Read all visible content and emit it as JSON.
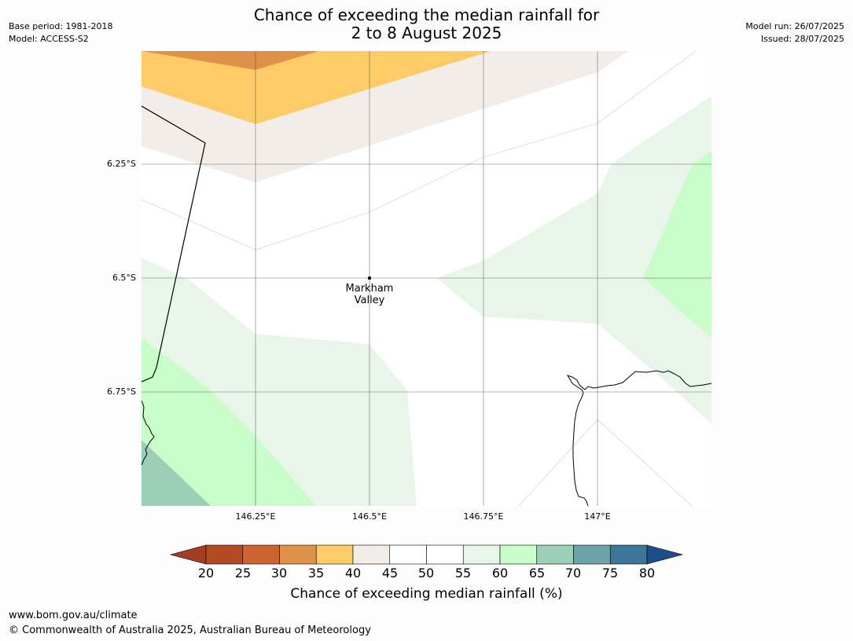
{
  "header": {
    "title_line1": "Chance of exceeding the median rainfall for",
    "title_line2": "2 to 8 August 2025",
    "base_period": "Base period: 1981-2018",
    "model": "Model: ACCESS-S2",
    "model_run": "Model run: 26/07/2025",
    "issued": "Issued: 28/07/2025"
  },
  "map": {
    "lat_ticks": [
      "6.25°S",
      "6.5°S",
      "6.75°S"
    ],
    "lon_ticks": [
      "146.25°E",
      "146.5°E",
      "146.75°E",
      "147°E"
    ],
    "location": {
      "name_line1": "Markham",
      "name_line2": "Valley"
    }
  },
  "colorbar": {
    "ticks": [
      "20",
      "25",
      "30",
      "35",
      "40",
      "45",
      "50",
      "55",
      "60",
      "65",
      "70",
      "75",
      "80"
    ],
    "colors": [
      "#a43d22",
      "#b44a24",
      "#cc6431",
      "#e09149",
      "#fecb66",
      "#f2ede8",
      "#ffffff",
      "#ffffff",
      "#e9f5e9",
      "#c8fcc8",
      "#9ccfb8",
      "#6ea3a8",
      "#3e7699",
      "#1a4f8c"
    ],
    "label": "Chance of exceeding median rainfall (%)"
  },
  "footer": {
    "url": "www.bom.gov.au/climate",
    "copyright": "© Commonwealth of Australia 2025, Australian Bureau of Meteorology"
  }
}
